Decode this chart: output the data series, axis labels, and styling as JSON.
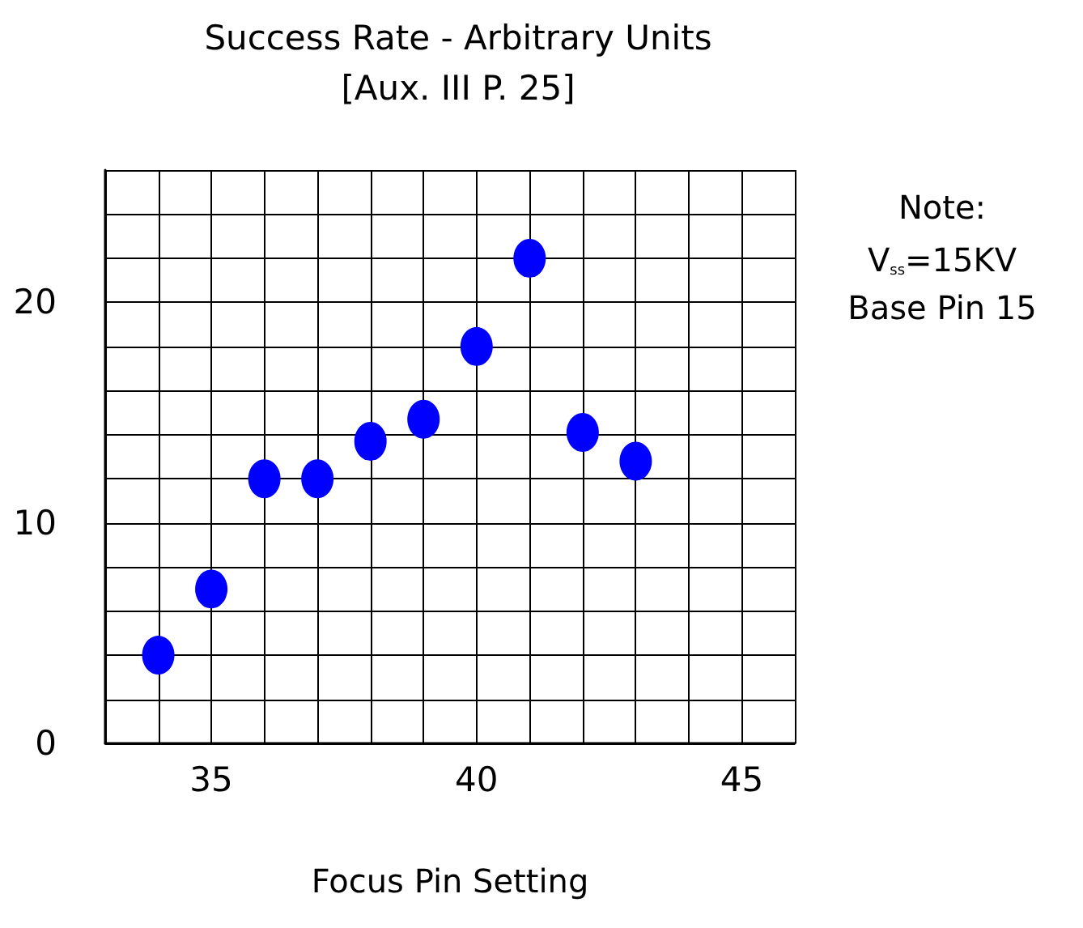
{
  "chart_data": {
    "type": "scatter",
    "title": "Success Rate - Arbitrary Units",
    "subtitle": "[Aux. III P. 25]",
    "xlabel": "Focus Pin Setting",
    "annotations": [
      "Note:",
      "V$_{ss}$=15KV",
      "Base Pin 15"
    ],
    "x": [
      34,
      35,
      36,
      37,
      38,
      39,
      40,
      41,
      42,
      43
    ],
    "series": [
      {
        "color": "#0000ff",
        "values": [
          4,
          7,
          12,
          12,
          13.7,
          14.7,
          18,
          22,
          14.1,
          12.8
        ]
      }
    ],
    "xlim": [
      33,
      46
    ],
    "xticks": [
      35,
      40,
      45
    ],
    "ylim": [
      0,
      26
    ],
    "yticks": [
      0,
      10,
      20
    ],
    "grid": true,
    "marker": "circle"
  }
}
